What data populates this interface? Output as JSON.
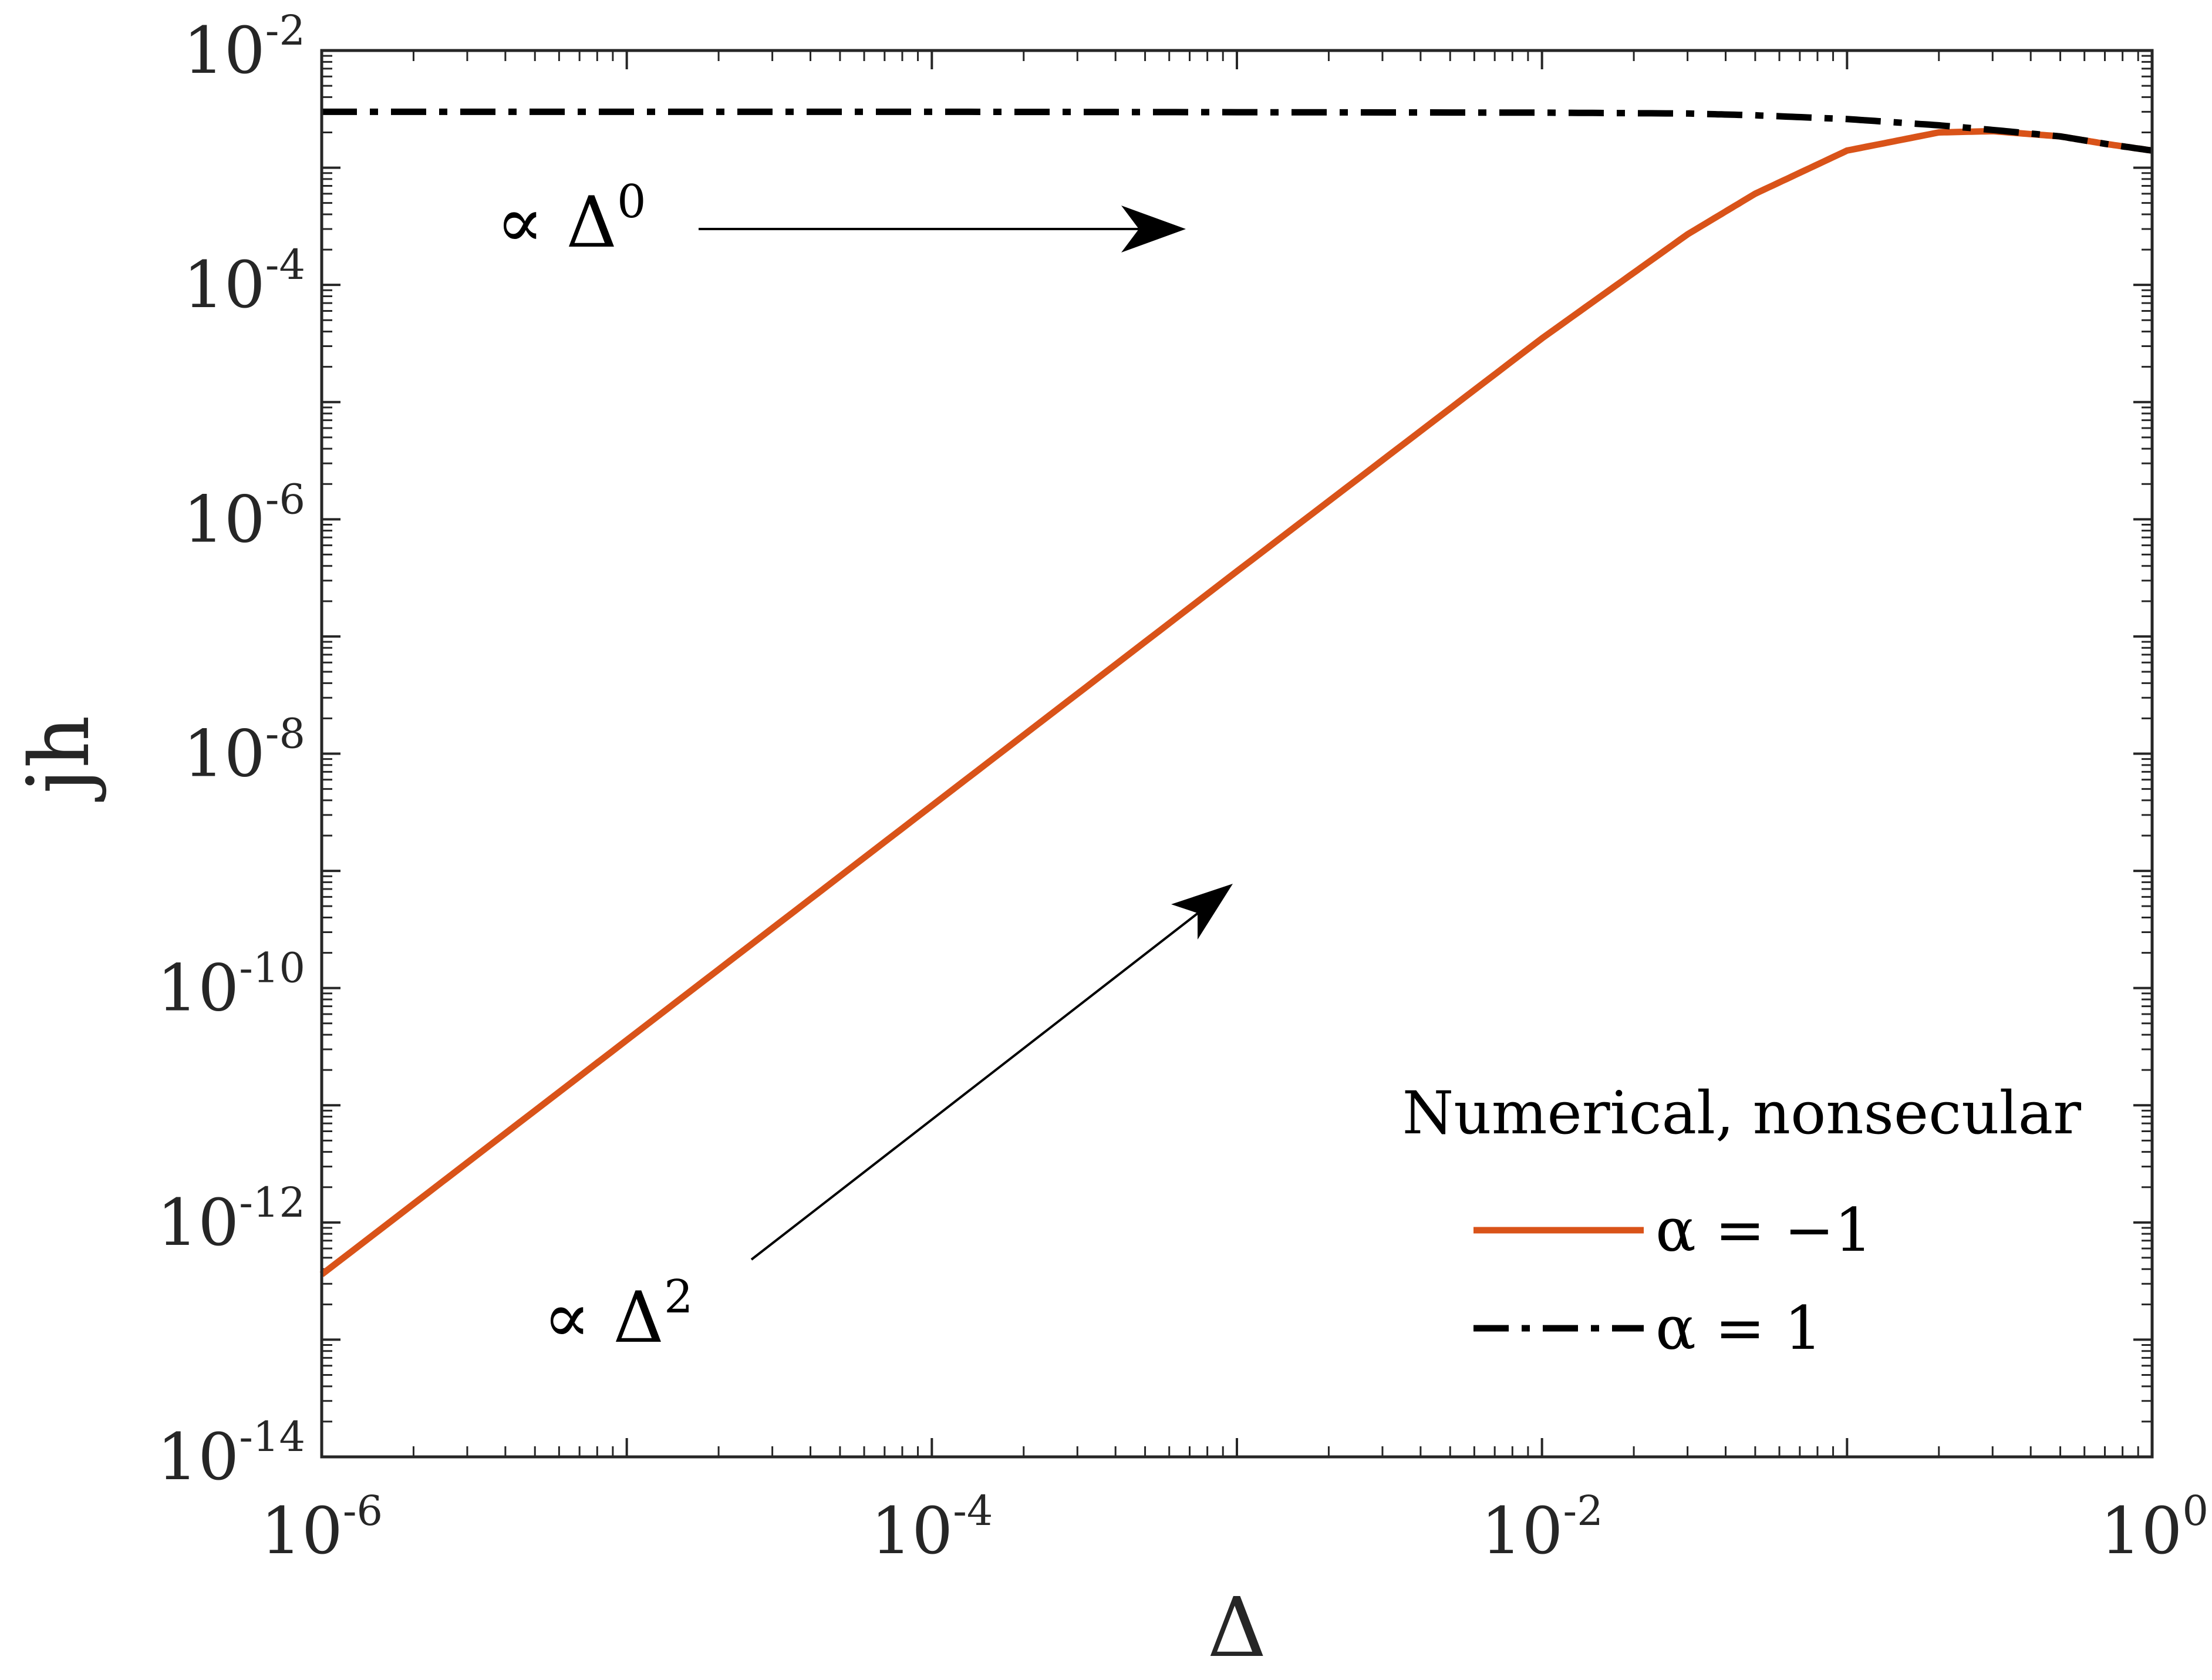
{
  "chart_data": {
    "type": "line",
    "xscale": "log",
    "yscale": "log",
    "xlim": [
      1e-06,
      1
    ],
    "ylim": [
      1e-14,
      0.01
    ],
    "xlabel": "Δ",
    "ylabel": "j̇h",
    "xticks": [
      {
        "base": "10",
        "exp": "-6",
        "value": 1e-06
      },
      {
        "base": "10",
        "exp": "-4",
        "value": 0.0001
      },
      {
        "base": "10",
        "exp": "-2",
        "value": 0.01
      },
      {
        "base": "10",
        "exp": "0",
        "value": 1
      }
    ],
    "yticks": [
      {
        "base": "10",
        "exp": "-2",
        "value": 0.01
      },
      {
        "base": "10",
        "exp": "-4",
        "value": 0.0001
      },
      {
        "base": "10",
        "exp": "-6",
        "value": 1e-06
      },
      {
        "base": "10",
        "exp": "-8",
        "value": 1e-08
      },
      {
        "base": "10",
        "exp": "-10",
        "value": 1e-10
      },
      {
        "base": "10",
        "exp": "-12",
        "value": 1e-12
      },
      {
        "base": "10",
        "exp": "-14",
        "value": 1e-14
      }
    ],
    "grid": false,
    "legend": {
      "title": "Numerical, nonsecular",
      "position": "bottom-right"
    },
    "series": [
      {
        "name": "α = −1",
        "color": "#D95319",
        "style": "solid",
        "x": [
          1e-06,
          1e-05,
          0.0001,
          0.001,
          0.01,
          0.03,
          0.05,
          0.1,
          0.2,
          0.3,
          0.5,
          0.7,
          1.0
        ],
        "y": [
          3.6e-13,
          3.6e-11,
          3.6e-09,
          3.6e-07,
          3.5e-05,
          0.00027,
          0.0006,
          0.0014,
          0.002,
          0.00205,
          0.00185,
          0.0016,
          0.0014
        ]
      },
      {
        "name": "α = 1",
        "color": "#000000",
        "style": "dashdot",
        "x": [
          1e-06,
          0.0001,
          0.01,
          0.03,
          0.05,
          0.1,
          0.2,
          0.3,
          0.5,
          0.7,
          1.0
        ],
        "y": [
          0.003,
          0.003,
          0.00295,
          0.0029,
          0.0028,
          0.0026,
          0.0023,
          0.0021,
          0.00185,
          0.0016,
          0.0014
        ]
      }
    ],
    "annotations": [
      {
        "prefix": "∝ Δ",
        "exp": "0",
        "label": "∝ Δ^0"
      },
      {
        "prefix": "∝ Δ",
        "exp": "2",
        "label": "∝ Δ^2"
      }
    ]
  }
}
